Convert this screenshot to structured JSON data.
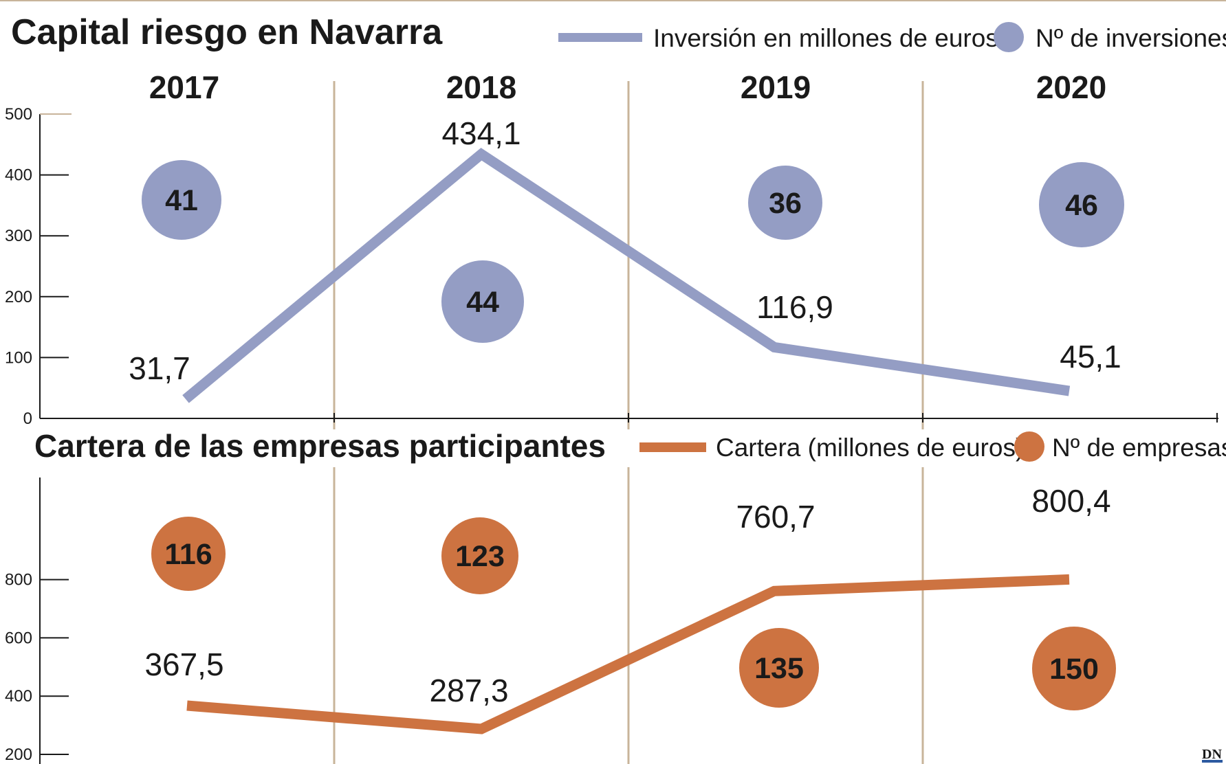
{
  "chart_data": [
    {
      "type": "line",
      "title": "Capital riesgo en Navarra",
      "categories": [
        "2017",
        "2018",
        "2019",
        "2020"
      ],
      "series": [
        {
          "name": "Inversión en millones de euros",
          "values": [
            31.7,
            434.1,
            116.9,
            45.1
          ],
          "labels": [
            "31,7",
            "434,1",
            "116,9",
            "45,1"
          ]
        },
        {
          "name": "Nº de inversiones",
          "values": [
            41,
            44,
            36,
            46
          ],
          "labels": [
            "41",
            "44",
            "36",
            "46"
          ]
        }
      ],
      "yticks": [
        "0",
        "100",
        "200",
        "300",
        "400",
        "500"
      ],
      "ylim": [
        0,
        500
      ],
      "colors": {
        "line": "#949dc4",
        "bubble": "#949dc4"
      }
    },
    {
      "type": "line",
      "title": "Cartera de las empresas participantes",
      "categories": [
        "2017",
        "2018",
        "2019",
        "2020"
      ],
      "series": [
        {
          "name": "Cartera (millones de euros)",
          "values": [
            367.5,
            287.3,
            760.7,
            800.4
          ],
          "labels": [
            "367,5",
            "287,3",
            "760,7",
            "800,4"
          ]
        },
        {
          "name": "Nº de empresas",
          "values": [
            116,
            123,
            135,
            150
          ],
          "labels": [
            "116",
            "123",
            "135",
            "150"
          ]
        }
      ],
      "yticks": [
        "200",
        "400",
        "600",
        "800"
      ],
      "ylim": [
        200,
        950
      ],
      "colors": {
        "line": "#cd7341",
        "bubble": "#cd7341"
      }
    }
  ],
  "logo": "DN",
  "colors": {
    "divider": "#c8b49a",
    "axis": "#1a1a1a",
    "text": "#1a1a1a"
  }
}
